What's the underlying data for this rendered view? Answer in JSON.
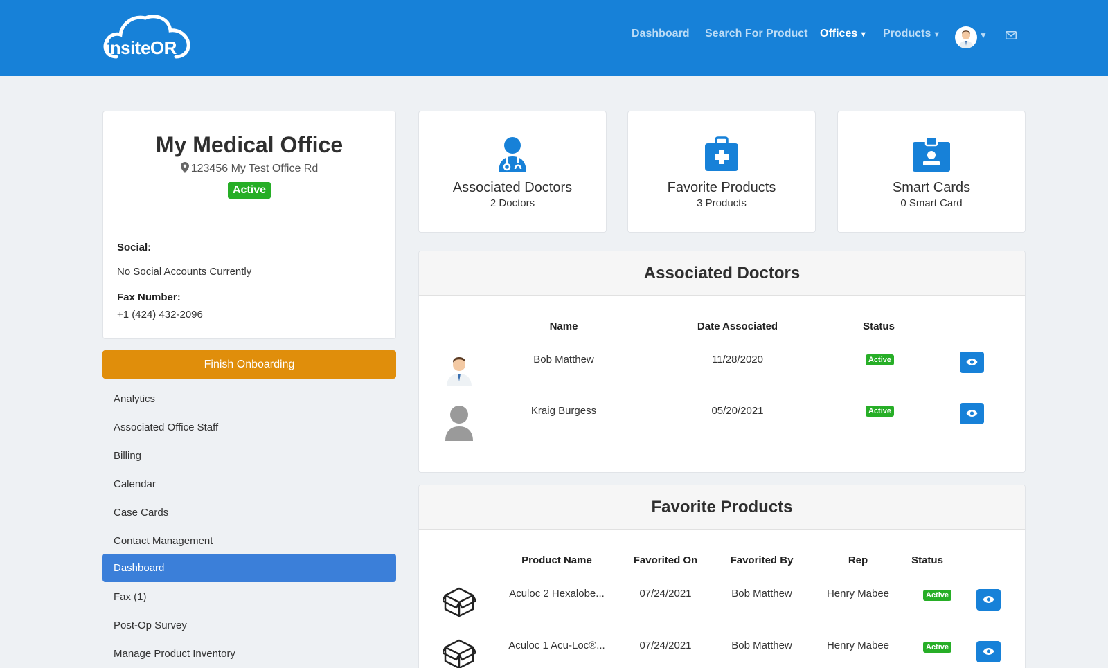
{
  "header": {
    "logo_text": "insiteOR",
    "nav": {
      "dashboard": "Dashboard",
      "search": "Search For Product",
      "offices": "Offices",
      "products": "Products"
    }
  },
  "office": {
    "name": "My Medical Office",
    "address": "123456 My Test Office Rd",
    "status": "Active",
    "social_label": "Social:",
    "social_value": "No Social Accounts Currently",
    "fax_label": "Fax Number:",
    "fax_value": "+1 (424) 432-2096"
  },
  "sidebar": {
    "finish_button": "Finish Onboarding",
    "items": [
      {
        "label": "Analytics"
      },
      {
        "label": "Associated Office Staff"
      },
      {
        "label": "Billing"
      },
      {
        "label": "Calendar"
      },
      {
        "label": "Case Cards"
      },
      {
        "label": "Contact Management"
      },
      {
        "label": "Dashboard"
      },
      {
        "label": "Fax (1)"
      },
      {
        "label": "Post-Op Survey"
      },
      {
        "label": "Manage Product Inventory"
      }
    ],
    "active_item": "Dashboard"
  },
  "stats": [
    {
      "title": "Associated Doctors",
      "sub": "2 Doctors"
    },
    {
      "title": "Favorite Products",
      "sub": "3 Products"
    },
    {
      "title": "Smart Cards",
      "sub": "0 Smart Card"
    }
  ],
  "doctors": {
    "title": "Associated Doctors",
    "columns": [
      "Name",
      "Date Associated",
      "Status"
    ],
    "rows": [
      {
        "name": "Bob Matthew",
        "date": "11/28/2020",
        "status": "Active"
      },
      {
        "name": "Kraig Burgess",
        "date": "05/20/2021",
        "status": "Active"
      }
    ]
  },
  "products": {
    "title": "Favorite Products",
    "columns": [
      "Product Name",
      "Favorited On",
      "Favorited By",
      "Rep",
      "Status"
    ],
    "rows": [
      {
        "name": "Aculoc 2 Hexalobe...",
        "date": "07/24/2021",
        "by": "Bob Matthew",
        "rep": "Henry Mabee",
        "status": "Active"
      },
      {
        "name": "Aculoc 1 Acu-Loc®...",
        "date": "07/24/2021",
        "by": "Bob Matthew",
        "rep": "Henry Mabee",
        "status": "Active"
      }
    ]
  },
  "colors": {
    "brand": "#1781d8",
    "active_green": "#27ae27",
    "finish_orange": "#e08e0b",
    "sidebar_active": "#3b7fd9"
  }
}
